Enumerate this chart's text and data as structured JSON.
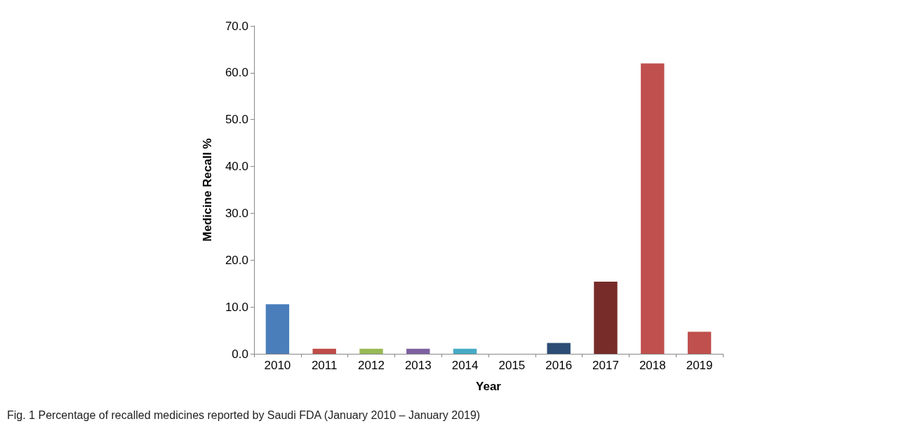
{
  "chart_data": {
    "type": "bar",
    "xlabel": "Year",
    "ylabel": "Medicine Recall %",
    "categories": [
      "2010",
      "2011",
      "2012",
      "2013",
      "2014",
      "2015",
      "2016",
      "2017",
      "2018",
      "2019"
    ],
    "values": [
      10.6,
      1.1,
      1.1,
      1.1,
      1.1,
      0,
      2.3,
      15.4,
      62.0,
      4.7
    ],
    "colors": [
      "#4a7ebb",
      "#be4b48",
      "#98b954",
      "#7d60a0",
      "#46aac5",
      "#f59d56",
      "#2c4d75",
      "#772c2a",
      "#c0504d",
      "#c0504d"
    ],
    "ylim": [
      0,
      70
    ],
    "yticks": [
      {
        "value": 0,
        "label": "0.0"
      },
      {
        "value": 10,
        "label": "10.0"
      },
      {
        "value": 20,
        "label": "20.0"
      },
      {
        "value": 30,
        "label": "30.0"
      },
      {
        "value": 40,
        "label": "40.0"
      },
      {
        "value": 50,
        "label": "50.0"
      },
      {
        "value": 60,
        "label": "60.0"
      },
      {
        "value": 70,
        "label": "70.0"
      }
    ],
    "grid": false,
    "annotations": [
      "Fig. 1 Percentage of recalled medicines reported by Saudi FDA (January 2010 – January 2019)"
    ]
  }
}
